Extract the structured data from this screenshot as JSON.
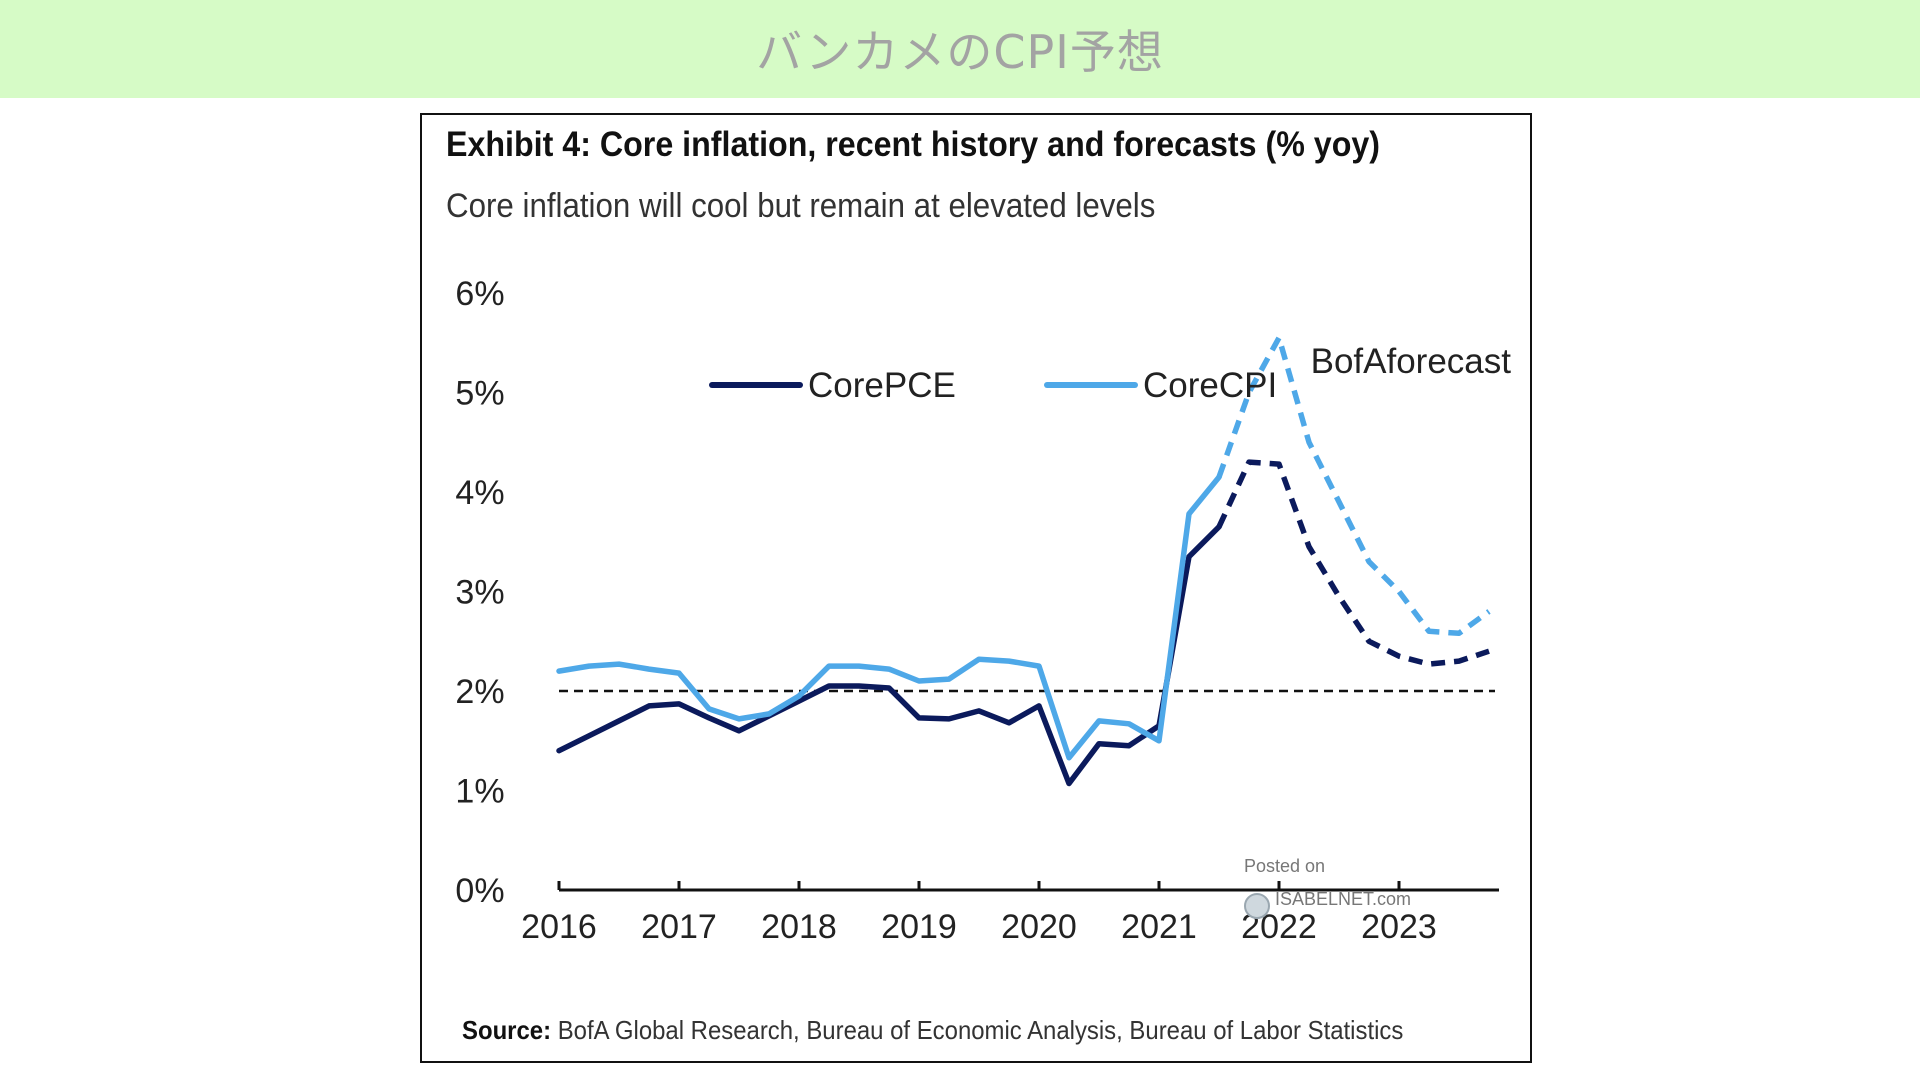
{
  "banner": {
    "title": "バンカメのCPI予想"
  },
  "chart_data": {
    "type": "line",
    "title": "Exhibit 4: Core inflation, recent history and forecasts (% yoy)",
    "subtitle": "Core inflation will cool but remain at elevated levels",
    "source_label": "Source:",
    "source_text": " BofA Global Research, Bureau of Economic Analysis, Bureau of Labor Statistics",
    "annotation": "BofAforecast",
    "xlabel": "",
    "ylabel": "",
    "ylim": [
      0,
      6
    ],
    "xlim": [
      2016,
      2023.8
    ],
    "y_ticks": [
      "0%",
      "1%",
      "2%",
      "3%",
      "4%",
      "5%",
      "6%"
    ],
    "x_ticks": [
      "2016",
      "2017",
      "2018",
      "2019",
      "2020",
      "2021",
      "2022",
      "2023"
    ],
    "reference_line": 2.0,
    "grid": false,
    "legend_position": "top",
    "forecast_start": 2021.5,
    "watermark": {
      "line1": "Posted on",
      "line2": "ISABELNET.com"
    },
    "series": [
      {
        "name": "CorePCE",
        "color": "#0b1a5c",
        "points": [
          [
            2016.0,
            1.4
          ],
          [
            2016.25,
            1.55
          ],
          [
            2016.5,
            1.7
          ],
          [
            2016.75,
            1.85
          ],
          [
            2017.0,
            1.87
          ],
          [
            2017.25,
            1.73
          ],
          [
            2017.5,
            1.6
          ],
          [
            2017.75,
            1.75
          ],
          [
            2018.0,
            1.9
          ],
          [
            2018.25,
            2.05
          ],
          [
            2018.5,
            2.05
          ],
          [
            2018.75,
            2.03
          ],
          [
            2019.0,
            1.73
          ],
          [
            2019.25,
            1.72
          ],
          [
            2019.5,
            1.8
          ],
          [
            2019.75,
            1.68
          ],
          [
            2020.0,
            1.85
          ],
          [
            2020.25,
            1.07
          ],
          [
            2020.5,
            1.47
          ],
          [
            2020.75,
            1.45
          ],
          [
            2021.0,
            1.65
          ],
          [
            2021.25,
            3.35
          ],
          [
            2021.5,
            3.65
          ],
          [
            2021.75,
            4.3
          ],
          [
            2022.0,
            4.28
          ],
          [
            2022.25,
            3.45
          ],
          [
            2022.5,
            2.95
          ],
          [
            2022.75,
            2.5
          ],
          [
            2023.0,
            2.35
          ],
          [
            2023.25,
            2.27
          ],
          [
            2023.5,
            2.3
          ],
          [
            2023.75,
            2.4
          ]
        ]
      },
      {
        "name": "CoreCPI",
        "color": "#4ea8e8",
        "points": [
          [
            2016.0,
            2.2
          ],
          [
            2016.25,
            2.25
          ],
          [
            2016.5,
            2.27
          ],
          [
            2016.75,
            2.22
          ],
          [
            2017.0,
            2.18
          ],
          [
            2017.25,
            1.82
          ],
          [
            2017.5,
            1.72
          ],
          [
            2017.75,
            1.77
          ],
          [
            2018.0,
            1.95
          ],
          [
            2018.25,
            2.25
          ],
          [
            2018.5,
            2.25
          ],
          [
            2018.75,
            2.22
          ],
          [
            2019.0,
            2.1
          ],
          [
            2019.25,
            2.12
          ],
          [
            2019.5,
            2.32
          ],
          [
            2019.75,
            2.3
          ],
          [
            2020.0,
            2.25
          ],
          [
            2020.25,
            1.33
          ],
          [
            2020.5,
            1.7
          ],
          [
            2020.75,
            1.67
          ],
          [
            2021.0,
            1.5
          ],
          [
            2021.25,
            3.78
          ],
          [
            2021.5,
            4.15
          ],
          [
            2021.75,
            5.0
          ],
          [
            2022.0,
            5.55
          ],
          [
            2022.25,
            4.5
          ],
          [
            2022.5,
            3.9
          ],
          [
            2022.75,
            3.3
          ],
          [
            2023.0,
            3.0
          ],
          [
            2023.25,
            2.6
          ],
          [
            2023.5,
            2.58
          ],
          [
            2023.75,
            2.8
          ]
        ]
      }
    ]
  }
}
